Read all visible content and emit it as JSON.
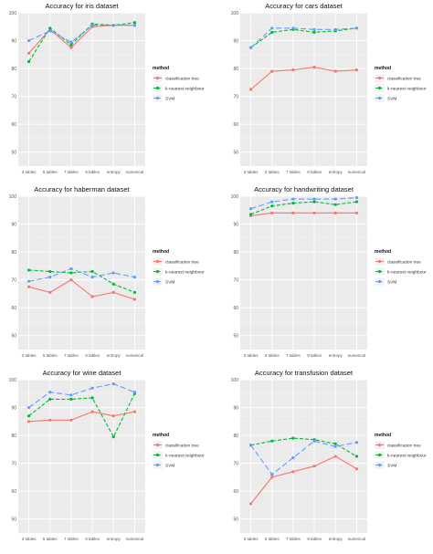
{
  "legend": {
    "title": "method",
    "entries": [
      "classification tree",
      "k-nearest neighbour",
      "SVM"
    ]
  },
  "colors": {
    "classification tree": "#F8766D",
    "k-nearest neighbour": "#00BA38",
    "SVM": "#619CFF",
    "panel_background": "#EBEBEB",
    "grid": "#FFFFFF"
  },
  "chart_data": [
    {
      "type": "line",
      "title": "Accuracy for iris dataset",
      "xlabel": "",
      "ylabel": "",
      "categories": [
        "3 tables",
        "5 tables",
        "7 tables",
        "9 tables",
        "entropy",
        "numerical"
      ],
      "ylim": [
        45,
        100
      ],
      "yticks": [
        50,
        60,
        70,
        80,
        90,
        100
      ],
      "grid": true,
      "legend_position": "right",
      "series": [
        {
          "name": "classification tree",
          "values": [
            85.5,
            94,
            87.5,
            95,
            95.5,
            95.5
          ]
        },
        {
          "name": "k-nearest neighbour",
          "values": [
            82.5,
            94.5,
            88.5,
            96,
            95.5,
            96.5
          ]
        },
        {
          "name": "SVM",
          "values": [
            90,
            93.5,
            89.5,
            95.5,
            95.5,
            95.5
          ]
        }
      ]
    },
    {
      "type": "line",
      "title": "Accuracy for cars dataset",
      "xlabel": "",
      "ylabel": "",
      "categories": [
        "3 tables",
        "5 tables",
        "7 tables",
        "9 tables",
        "entropy",
        "numerical"
      ],
      "ylim": [
        45,
        100
      ],
      "yticks": [
        50,
        60,
        70,
        80,
        90,
        100
      ],
      "grid": true,
      "legend_position": "right",
      "series": [
        {
          "name": "classification tree",
          "values": [
            72.5,
            79,
            79.5,
            80.5,
            79,
            79.5
          ]
        },
        {
          "name": "k-nearest neighbour",
          "values": [
            87.5,
            93,
            94,
            93,
            93.5,
            94.5
          ]
        },
        {
          "name": "SVM",
          "values": [
            87.5,
            94.5,
            94.5,
            94,
            94,
            94.5
          ]
        }
      ]
    },
    {
      "type": "line",
      "title": "Accuracy for haberman dataset",
      "xlabel": "",
      "ylabel": "",
      "categories": [
        "3 tables",
        "5 tables",
        "7 tables",
        "9 tables",
        "entropy",
        "numerical"
      ],
      "ylim": [
        45,
        100
      ],
      "yticks": [
        50,
        60,
        70,
        80,
        90,
        100
      ],
      "grid": true,
      "legend_position": "right",
      "series": [
        {
          "name": "classification tree",
          "values": [
            67.5,
            65.5,
            70,
            64,
            65.5,
            63
          ]
        },
        {
          "name": "k-nearest neighbour",
          "values": [
            73.5,
            73,
            72.5,
            73,
            68.5,
            65.5
          ]
        },
        {
          "name": "SVM",
          "values": [
            69.5,
            71,
            74,
            71,
            72.5,
            71
          ]
        }
      ]
    },
    {
      "type": "line",
      "title": "Accuracy for handwriting dataset",
      "xlabel": "",
      "ylabel": "",
      "categories": [
        "3 tables",
        "5 tables",
        "7 tables",
        "9 tables",
        "entropy",
        "numerical"
      ],
      "ylim": [
        45,
        100
      ],
      "yticks": [
        50,
        60,
        70,
        80,
        90,
        100
      ],
      "grid": true,
      "legend_position": "right",
      "series": [
        {
          "name": "classification tree",
          "values": [
            93,
            94,
            94,
            94,
            94,
            94
          ]
        },
        {
          "name": "k-nearest neighbour",
          "values": [
            93.5,
            96.5,
            97.5,
            98,
            97,
            98
          ]
        },
        {
          "name": "SVM",
          "values": [
            95.5,
            98,
            99,
            99,
            99,
            99.5
          ]
        }
      ]
    },
    {
      "type": "line",
      "title": "Accuracy for wine dataset",
      "xlabel": "",
      "ylabel": "",
      "categories": [
        "3 tables",
        "5 tables",
        "7 tables",
        "9 tables",
        "entropy",
        "numerical"
      ],
      "ylim": [
        45,
        100
      ],
      "yticks": [
        50,
        60,
        70,
        80,
        90,
        100
      ],
      "grid": true,
      "legend_position": "right",
      "series": [
        {
          "name": "classification tree",
          "values": [
            85,
            85.5,
            85.5,
            88.5,
            87,
            88.5
          ]
        },
        {
          "name": "k-nearest neighbour",
          "values": [
            87,
            93,
            93,
            93.5,
            79.5,
            95
          ]
        },
        {
          "name": "SVM",
          "values": [
            90,
            95.5,
            94.5,
            97,
            98.5,
            95.5
          ]
        }
      ]
    },
    {
      "type": "line",
      "title": "Accuracy for transfusion dataset",
      "xlabel": "",
      "ylabel": "",
      "categories": [
        "3 tables",
        "5 tables",
        "7 tables",
        "9 tables",
        "entropy",
        "numerical"
      ],
      "ylim": [
        45,
        100
      ],
      "yticks": [
        50,
        60,
        70,
        80,
        90,
        100
      ],
      "grid": true,
      "legend_position": "right",
      "series": [
        {
          "name": "classification tree",
          "values": [
            55.5,
            65,
            67,
            69,
            72.5,
            68
          ]
        },
        {
          "name": "k-nearest neighbour",
          "values": [
            76.5,
            78,
            79,
            78.5,
            77,
            72.5
          ]
        },
        {
          "name": "SVM",
          "values": [
            76.5,
            66,
            72,
            78,
            76,
            77.5
          ]
        }
      ]
    }
  ]
}
